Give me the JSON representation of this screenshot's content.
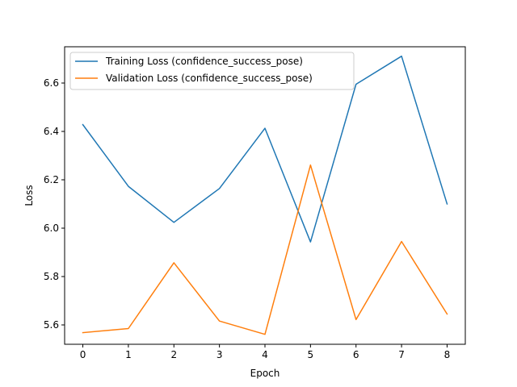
{
  "chart_data": {
    "type": "line",
    "x": [
      0,
      1,
      2,
      3,
      4,
      5,
      6,
      7,
      8
    ],
    "series": [
      {
        "name": "Training Loss (confidence_success_pose)",
        "color": "#1f77b4",
        "values": [
          6.428,
          6.173,
          6.024,
          6.164,
          6.413,
          5.943,
          6.595,
          6.711,
          6.1
        ]
      },
      {
        "name": "Validation Loss (confidence_success_pose)",
        "color": "#ff7f0e",
        "values": [
          5.568,
          5.585,
          5.857,
          5.616,
          5.561,
          6.261,
          5.622,
          5.945,
          5.645
        ]
      }
    ],
    "xlabel": "Epoch",
    "ylabel": "Loss",
    "xlim": [
      -0.4,
      8.4
    ],
    "ylim": [
      5.52,
      6.75
    ],
    "xticks": [
      "0",
      "1",
      "2",
      "3",
      "4",
      "5",
      "6",
      "7",
      "8"
    ],
    "yticks": [
      "5.6",
      "5.8",
      "6.0",
      "6.2",
      "6.4",
      "6.6"
    ],
    "grid": false,
    "legend_position": "top-left"
  }
}
